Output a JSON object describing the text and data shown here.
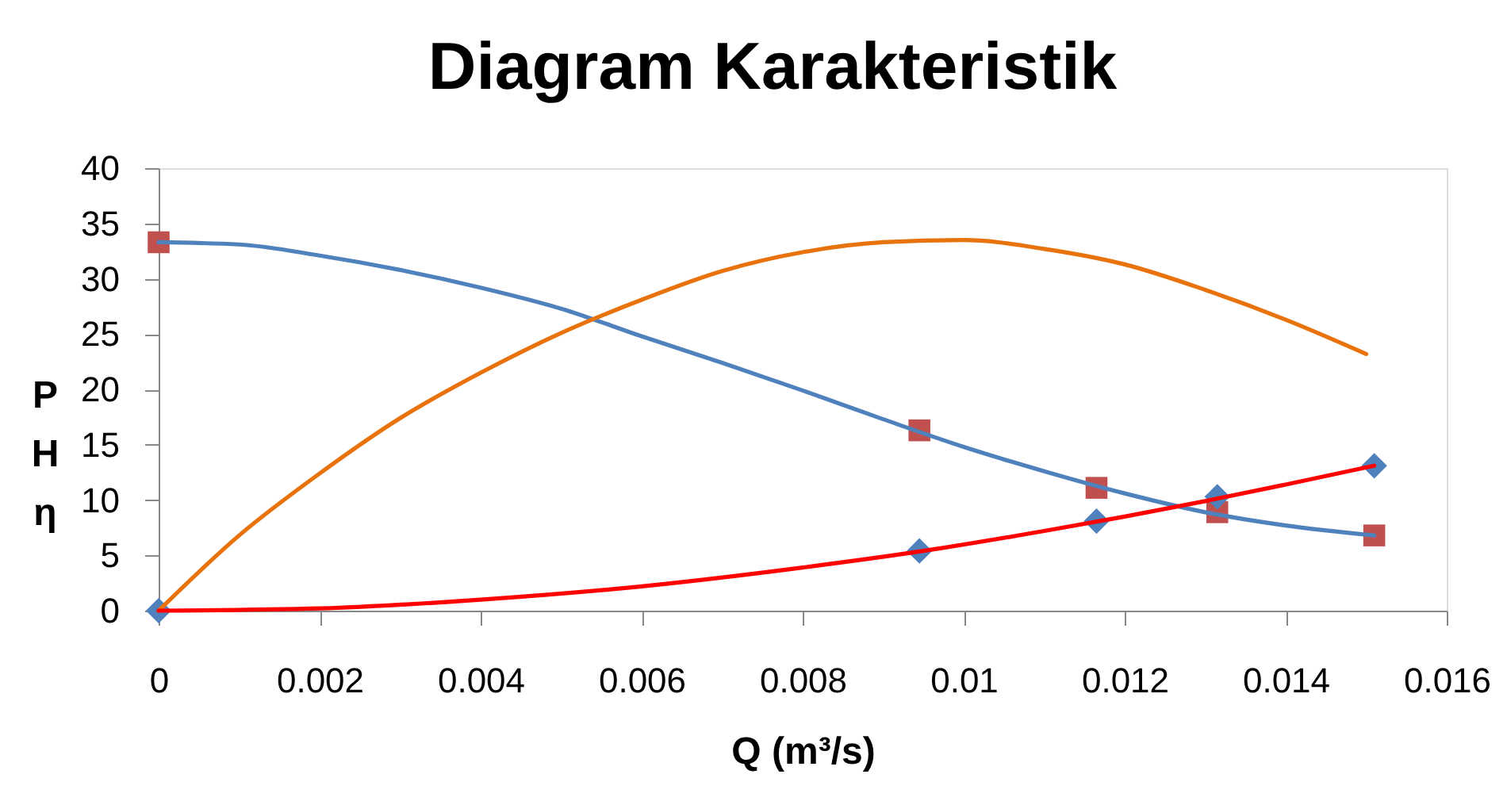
{
  "chart_data": {
    "type": "line",
    "title": "Diagram Karakteristik",
    "xlabel": "Q (m³/s)",
    "ylabel": "P\nH\nη",
    "xlim": [
      0,
      0.016
    ],
    "xticks": [
      0,
      0.002,
      0.004,
      0.006,
      0.008,
      0.01,
      0.012,
      0.014,
      0.016
    ],
    "ylim": [
      0,
      40
    ],
    "yticks": [
      0,
      5,
      10,
      15,
      20,
      25,
      30,
      35,
      40
    ],
    "grid": false,
    "series": [
      {
        "type": "scatter",
        "marker": "square",
        "color": "#c0504d",
        "x": [
          0,
          0.00945,
          0.01165,
          0.01315,
          0.0151
        ],
        "values": [
          33.3,
          16.3,
          11.1,
          8.9,
          6.8
        ]
      },
      {
        "type": "scatter",
        "marker": "diamond",
        "color": "#4f81bd",
        "x": [
          0,
          0.00945,
          0.01165,
          0.01315,
          0.0151
        ],
        "values": [
          0,
          5.4,
          8.1,
          10.3,
          13.1
        ]
      },
      {
        "color": "#4f81bd",
        "x": [
          0,
          0.001,
          0.002,
          0.003,
          0.004,
          0.005,
          0.006,
          0.007,
          0.008,
          0.009,
          0.01,
          0.011,
          0.012,
          0.013,
          0.014,
          0.0151
        ],
        "values": [
          33.3,
          33.1,
          32.1,
          30.8,
          29.2,
          27.3,
          24.8,
          22.4,
          19.9,
          17.3,
          14.8,
          12.6,
          10.6,
          8.9,
          7.7,
          6.8
        ]
      },
      {
        "color": "#e8720c",
        "x": [
          0,
          0.001,
          0.002,
          0.003,
          0.004,
          0.005,
          0.006,
          0.007,
          0.008,
          0.009,
          0.01,
          0.011,
          0.012,
          0.013,
          0.014,
          0.015
        ],
        "values": [
          0,
          6.8,
          12.4,
          17.4,
          21.5,
          25.1,
          28.1,
          30.7,
          32.4,
          33.3,
          33.5,
          32.7,
          31.3,
          29.0,
          26.3,
          23.2
        ]
      },
      {
        "color": "#ff0000",
        "x": [
          0,
          0.002,
          0.004,
          0.006,
          0.008,
          0.0095,
          0.011,
          0.012,
          0.013,
          0.014,
          0.0151
        ],
        "values": [
          0,
          0.2,
          1.0,
          2.2,
          3.9,
          5.4,
          7.2,
          8.5,
          9.9,
          11.4,
          13.1
        ]
      }
    ]
  }
}
